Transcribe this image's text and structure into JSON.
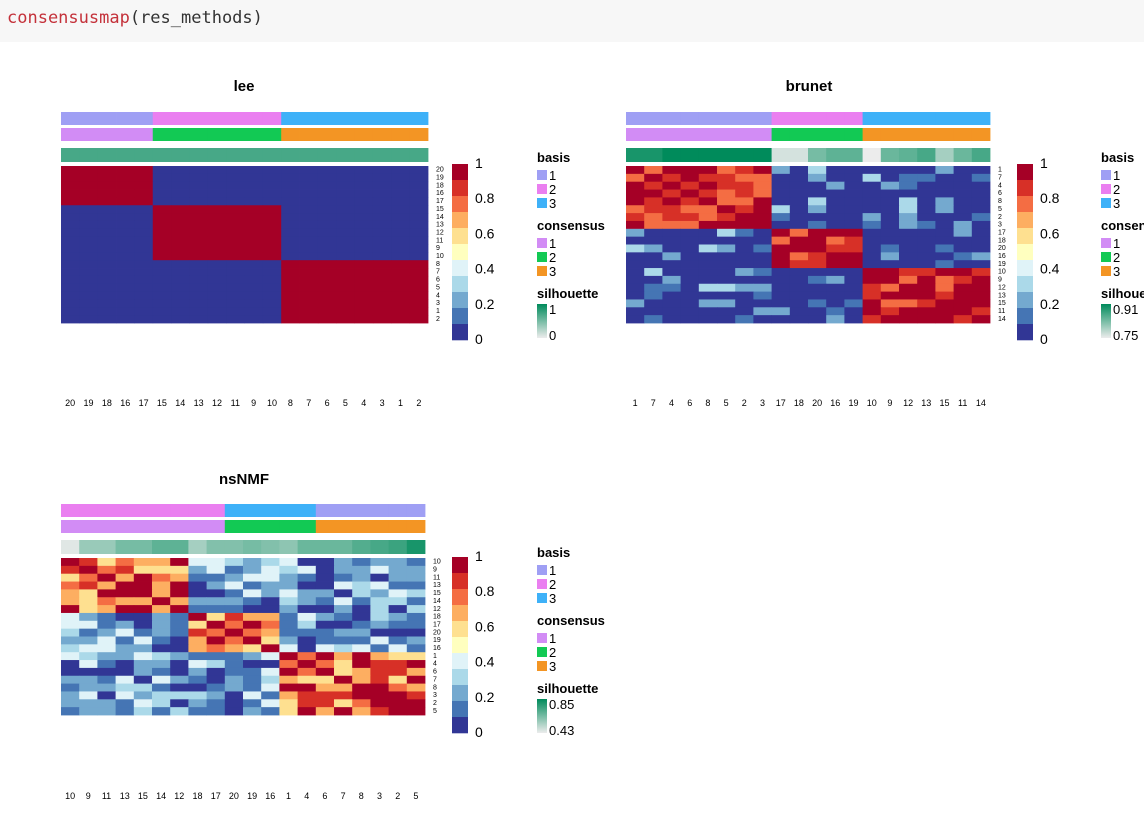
{
  "code": {
    "function": "consensusmap",
    "args": "(res_methods)"
  },
  "colors": {
    "basis": {
      "1": "#9f9ff4",
      "2": "#ea7ff0",
      "3": "#3eb1f8"
    },
    "consensus": {
      "1": "#d28cf5",
      "2": "#12c954",
      "3": "#f39524"
    },
    "heat": [
      "#313695",
      "#4575b4",
      "#74a9cf",
      "#abd9e9",
      "#e0f3f8",
      "#ffffbf",
      "#fee090",
      "#fdae61",
      "#f46d43",
      "#d73027",
      "#a50026"
    ],
    "silhouette_low": "#ececec",
    "silhouette_high": "#008b5b"
  },
  "chart_data": [
    {
      "type": "heatmap",
      "title": "lee",
      "row_labels": [
        "20",
        "19",
        "18",
        "16",
        "17",
        "15",
        "14",
        "13",
        "12",
        "11",
        "9",
        "10",
        "8",
        "7",
        "6",
        "5",
        "4",
        "3",
        "1",
        "2"
      ],
      "col_labels": [
        "20",
        "19",
        "18",
        "16",
        "17",
        "15",
        "14",
        "13",
        "12",
        "11",
        "9",
        "10",
        "8",
        "7",
        "6",
        "5",
        "4",
        "3",
        "1",
        "2"
      ],
      "basis": [
        1,
        1,
        1,
        1,
        1,
        2,
        2,
        2,
        2,
        2,
        2,
        2,
        3,
        3,
        3,
        3,
        3,
        3,
        3,
        3
      ],
      "consensus": [
        1,
        1,
        1,
        1,
        1,
        2,
        2,
        2,
        2,
        2,
        2,
        2,
        3,
        3,
        3,
        3,
        3,
        3,
        3,
        3
      ],
      "silhouette": [
        0.7,
        0.7,
        0.7,
        0.7,
        0.7,
        0.7,
        0.7,
        0.7,
        0.7,
        0.7,
        0.7,
        0.7,
        0.7,
        0.7,
        0.7,
        0.7,
        0.7,
        0.7,
        0.7,
        0.7
      ],
      "groups": [
        5,
        7,
        8
      ],
      "scale": {
        "ticks": [
          "1",
          "0.8",
          "0.6",
          "0.4",
          "0.2",
          "0"
        ]
      },
      "legend": {
        "basis": {
          "title": "basis",
          "items": [
            "1",
            "2",
            "3"
          ]
        },
        "consensus": {
          "title": "consensus",
          "items": [
            "1",
            "2",
            "3"
          ]
        },
        "silhouette": {
          "title": "silhouette",
          "max": "1",
          "min": "0"
        }
      }
    },
    {
      "type": "heatmap",
      "title": "brunet",
      "row_labels": [
        "1",
        "7",
        "4",
        "6",
        "8",
        "5",
        "2",
        "3",
        "17",
        "18",
        "20",
        "16",
        "19",
        "10",
        "9",
        "12",
        "13",
        "15",
        "11",
        "14"
      ],
      "col_labels": [
        "1",
        "7",
        "4",
        "6",
        "8",
        "5",
        "2",
        "3",
        "17",
        "18",
        "20",
        "16",
        "19",
        "10",
        "9",
        "12",
        "13",
        "15",
        "11",
        "14"
      ],
      "basis": [
        1,
        1,
        1,
        1,
        1,
        1,
        1,
        1,
        2,
        2,
        2,
        2,
        2,
        3,
        3,
        3,
        3,
        3,
        3,
        3
      ],
      "consensus": [
        1,
        1,
        1,
        1,
        1,
        1,
        1,
        1,
        2,
        2,
        2,
        2,
        2,
        3,
        3,
        3,
        3,
        3,
        3,
        3
      ],
      "silhouette": [
        0.9,
        0.9,
        1,
        1,
        1,
        1,
        1,
        1,
        0.1,
        0.1,
        0.5,
        0.6,
        0.6,
        0,
        0.55,
        0.6,
        0.7,
        0.3,
        0.55,
        0.7
      ],
      "groups": [
        8,
        5,
        7
      ],
      "scale": {
        "ticks": [
          "1",
          "0.8",
          "0.6",
          "0.4",
          "0.2",
          "0"
        ]
      },
      "legend": {
        "basis": {
          "title": "basis",
          "items": [
            "1",
            "2",
            "3"
          ]
        },
        "consensus": {
          "title": "consensus",
          "items": [
            "1",
            "2",
            "3"
          ]
        },
        "silhouette": {
          "title": "silhouette",
          "max": "0.91",
          "min": "0.75"
        }
      }
    },
    {
      "type": "heatmap",
      "title": "nsNMF",
      "row_labels": [
        "10",
        "9",
        "11",
        "13",
        "15",
        "14",
        "12",
        "18",
        "17",
        "20",
        "19",
        "16",
        "1",
        "4",
        "6",
        "7",
        "8",
        "3",
        "2",
        "5"
      ],
      "col_labels": [
        "10",
        "9",
        "11",
        "13",
        "15",
        "14",
        "12",
        "18",
        "17",
        "20",
        "19",
        "16",
        "1",
        "4",
        "6",
        "7",
        "8",
        "3",
        "2",
        "5"
      ],
      "basis": [
        2,
        2,
        2,
        2,
        2,
        2,
        2,
        2,
        2,
        3,
        3,
        3,
        3,
        3,
        1,
        1,
        1,
        1,
        1,
        1
      ],
      "consensus": [
        1,
        1,
        1,
        1,
        1,
        1,
        1,
        1,
        1,
        2,
        2,
        2,
        2,
        2,
        3,
        3,
        3,
        3,
        3,
        3
      ],
      "silhouette": [
        0.05,
        0.35,
        0.35,
        0.5,
        0.5,
        0.6,
        0.6,
        0.3,
        0.45,
        0.45,
        0.5,
        0.45,
        0.4,
        0.55,
        0.55,
        0.55,
        0.65,
        0.7,
        0.75,
        0.9
      ],
      "groups": [
        7,
        5,
        8
      ],
      "scale": {
        "ticks": [
          "1",
          "0.8",
          "0.6",
          "0.4",
          "0.2",
          "0"
        ]
      },
      "legend": {
        "basis": {
          "title": "basis",
          "items": [
            "1",
            "2",
            "3"
          ]
        },
        "consensus": {
          "title": "consensus",
          "items": [
            "1",
            "2",
            "3"
          ]
        },
        "silhouette": {
          "title": "silhouette",
          "max": "0.85",
          "min": "0.43"
        }
      }
    }
  ]
}
